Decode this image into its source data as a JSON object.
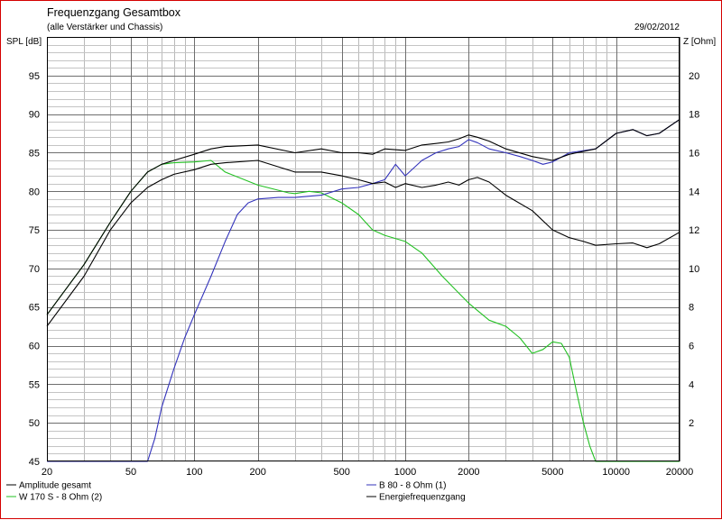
{
  "chart_data": {
    "type": "line",
    "title": "Frequenzgang Gesamtbox",
    "subtitle": "(alle Verstärker und Chassis)",
    "date": "29/02/2012",
    "ylabel": "SPL [dB]",
    "y2label": "Z [Ohm]",
    "xscale": "log",
    "xlim": [
      20,
      20000
    ],
    "ylim": [
      45,
      100
    ],
    "y2lim": [
      0,
      22
    ],
    "grid": true,
    "x_ticks": [
      20,
      50,
      100,
      200,
      500,
      1000,
      2000,
      5000,
      10000,
      20000
    ],
    "x_tick_labels": [
      "20",
      "50",
      "100",
      "200",
      "500",
      "1000",
      "2000",
      "5000",
      "10000",
      "20000"
    ],
    "y_ticks": [
      45,
      50,
      55,
      60,
      65,
      70,
      75,
      80,
      85,
      90,
      95
    ],
    "y_tick_labels": [
      "45",
      "50",
      "55",
      "60",
      "65",
      "70",
      "75",
      "80",
      "85",
      "90",
      "95"
    ],
    "y2_ticks": [
      2,
      4,
      6,
      8,
      10,
      12,
      14,
      16,
      18,
      20
    ],
    "y2_tick_labels": [
      "2",
      "4",
      "6",
      "8",
      "10",
      "12",
      "14",
      "16",
      "18",
      "20"
    ],
    "legend_position": "bottom",
    "series": [
      {
        "name": "Amplitude gesamt",
        "color": "#000000",
        "x": [
          20,
          30,
          40,
          50,
          60,
          70,
          80,
          100,
          120,
          140,
          200,
          300,
          400,
          500,
          600,
          700,
          800,
          900,
          1000,
          1200,
          1400,
          1600,
          1800,
          2000,
          2200,
          2500,
          3000,
          4000,
          5000,
          6000,
          7000,
          8000,
          10000,
          12000,
          14000,
          16000,
          20000
        ],
        "y": [
          62.5,
          69,
          75,
          78.5,
          80.5,
          81.5,
          82.2,
          82.8,
          83.5,
          83.7,
          84,
          82.5,
          82.5,
          82,
          81.5,
          81,
          81.2,
          80.5,
          81,
          80.5,
          80.8,
          81.2,
          80.8,
          81.5,
          81.8,
          81.2,
          79.5,
          77.5,
          75,
          74,
          73.5,
          73,
          73.2,
          73.3,
          72.7,
          73.2,
          74.7
        ]
      },
      {
        "name": "W 170 S - 8 Ohm (2)",
        "color": "#22c022",
        "x": [
          20,
          30,
          40,
          50,
          60,
          70,
          80,
          100,
          120,
          140,
          200,
          280,
          300,
          350,
          400,
          500,
          600,
          700,
          800,
          1000,
          1200,
          1500,
          2000,
          2500,
          3000,
          3500,
          4000,
          4500,
          5000,
          5500,
          6000,
          6500,
          7000,
          7500,
          8000,
          10000,
          20000
        ],
        "y": [
          64,
          70.5,
          76,
          80,
          82.5,
          83.5,
          83.7,
          83.8,
          84,
          82.5,
          80.8,
          79.8,
          79.7,
          80,
          79.8,
          78.5,
          77,
          75,
          74.3,
          73.5,
          72,
          69,
          65.5,
          63.3,
          62.5,
          61,
          59,
          59.5,
          60.5,
          60.3,
          58.5,
          54,
          50,
          47,
          45,
          45,
          45
        ]
      },
      {
        "name": "B 80 - 8 Ohm (1)",
        "color": "#3333bb",
        "x": [
          20,
          50,
          60,
          65,
          70,
          80,
          90,
          100,
          120,
          140,
          160,
          180,
          200,
          250,
          300,
          400,
          500,
          600,
          700,
          800,
          900,
          1000,
          1200,
          1400,
          1600,
          1800,
          2000,
          2200,
          2500,
          3000,
          3500,
          4000,
          4500,
          5000,
          6000,
          8000,
          10000,
          12000,
          14000,
          16000,
          20000
        ],
        "y": [
          45,
          45,
          45,
          48,
          52,
          57,
          61,
          64,
          69,
          73.5,
          77,
          78.5,
          79,
          79.2,
          79.2,
          79.5,
          80.3,
          80.5,
          81,
          81.5,
          83.5,
          82,
          84,
          85,
          85.5,
          85.8,
          86.7,
          86.3,
          85.5,
          85,
          84.5,
          84,
          83.5,
          83.8,
          85,
          85.5,
          87.5,
          88,
          87.2,
          87.5,
          89.3
        ]
      },
      {
        "name": "Energiefrequenzgang",
        "color": "#000000",
        "x": [
          20,
          30,
          40,
          50,
          60,
          70,
          80,
          100,
          120,
          140,
          200,
          300,
          400,
          500,
          600,
          700,
          800,
          1000,
          1200,
          1400,
          1600,
          1800,
          2000,
          2200,
          2500,
          3000,
          4000,
          5000,
          6000,
          8000,
          10000,
          12000,
          14000,
          16000,
          20000
        ],
        "y": [
          64,
          70.5,
          76,
          80,
          82.5,
          83.5,
          84,
          84.8,
          85.5,
          85.8,
          86,
          85,
          85.5,
          85,
          85,
          84.8,
          85.5,
          85.3,
          86,
          86.2,
          86.4,
          86.8,
          87.3,
          87,
          86.5,
          85.5,
          84.5,
          84,
          84.8,
          85.5,
          87.5,
          88,
          87.2,
          87.5,
          89.3
        ]
      }
    ]
  }
}
